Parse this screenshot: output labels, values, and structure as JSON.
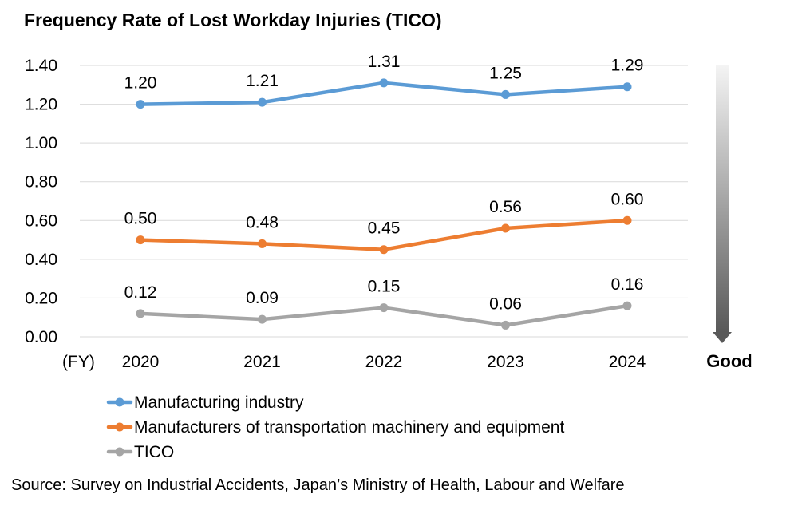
{
  "chart_data": {
    "type": "line",
    "title": "Frequency Rate of Lost Workday Injuries (TICO)",
    "x_unit_label": "(FY)",
    "categories": [
      "2020",
      "2021",
      "2022",
      "2023",
      "2024"
    ],
    "ylim": [
      0,
      1.4
    ],
    "yticks": [
      "0.00",
      "0.20",
      "0.40",
      "0.60",
      "0.80",
      "1.00",
      "1.20",
      "1.40"
    ],
    "grid": true,
    "legend_position": "bottom",
    "series": [
      {
        "name": "Manufacturing industry",
        "color": "#5B9BD5",
        "values": [
          1.2,
          1.21,
          1.31,
          1.25,
          1.29
        ],
        "labels": [
          "1.20",
          "1.21",
          "1.31",
          "1.25",
          "1.29"
        ]
      },
      {
        "name": "Manufacturers of transportation machinery and equipment",
        "color": "#ED7D31",
        "values": [
          0.5,
          0.48,
          0.45,
          0.56,
          0.6
        ],
        "labels": [
          "0.50",
          "0.48",
          "0.45",
          "0.56",
          "0.60"
        ]
      },
      {
        "name": "TICO",
        "color": "#A5A5A5",
        "values": [
          0.12,
          0.09,
          0.15,
          0.06,
          0.16
        ],
        "labels": [
          "0.12",
          "0.09",
          "0.15",
          "0.06",
          "0.16"
        ]
      }
    ],
    "annotation": "Good",
    "source": "Source: Survey on Industrial Accidents, Japan’s Ministry of Health, Labour and Welfare"
  }
}
